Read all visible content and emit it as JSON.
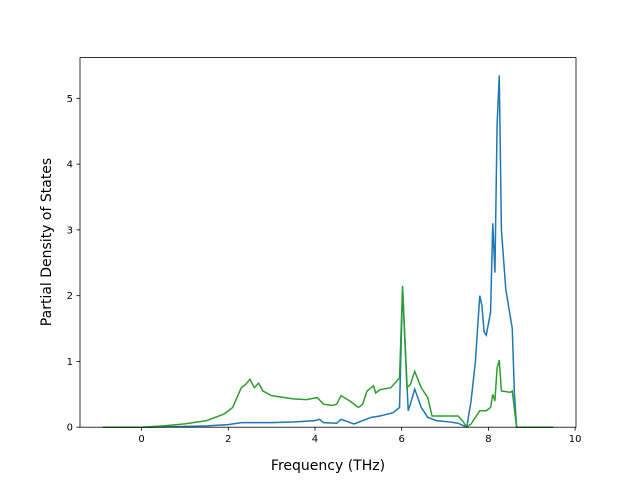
{
  "chart_data": {
    "type": "line",
    "xlabel": "Frequency (THz)",
    "ylabel": "Partial Density of States",
    "xlim": [
      -1.42,
      10.02
    ],
    "ylim": [
      0,
      5.62
    ],
    "xticks": [
      0,
      2,
      4,
      6,
      8,
      10
    ],
    "yticks": [
      0,
      1,
      2,
      3,
      4,
      5
    ],
    "series": [
      {
        "color": "#1f77b4",
        "x": [
          -0.9,
          0,
          1,
          1.5,
          2,
          2.3,
          3,
          3.5,
          4,
          4.1,
          4.2,
          4.5,
          4.6,
          4.9,
          5.1,
          5.3,
          5.5,
          5.8,
          5.95,
          6.02,
          6.15,
          6.2,
          6.3,
          6.45,
          6.6,
          6.8,
          7.1,
          7.3,
          7.5,
          7.6,
          7.7,
          7.8,
          7.85,
          7.9,
          7.95,
          8.05,
          8.1,
          8.15,
          8.2,
          8.25,
          8.3,
          8.4,
          8.55,
          8.6,
          8.65,
          9.5
        ],
        "values": [
          0,
          0,
          0.01,
          0.02,
          0.04,
          0.07,
          0.07,
          0.08,
          0.1,
          0.12,
          0.07,
          0.06,
          0.12,
          0.05,
          0.1,
          0.15,
          0.17,
          0.22,
          0.3,
          2.1,
          0.25,
          0.35,
          0.58,
          0.3,
          0.15,
          0.1,
          0.08,
          0.06,
          0,
          0.4,
          1.0,
          2.0,
          1.85,
          1.45,
          1.4,
          1.75,
          3.1,
          2.35,
          4.6,
          5.35,
          3.0,
          2.1,
          1.5,
          0.5,
          0,
          0
        ]
      },
      {
        "color": "#2ca02c",
        "x": [
          -0.9,
          0,
          0.5,
          1,
          1.5,
          1.9,
          2.1,
          2.3,
          2.4,
          2.5,
          2.6,
          2.7,
          2.8,
          3.0,
          3.5,
          3.8,
          4.05,
          4.2,
          4.4,
          4.5,
          4.6,
          4.8,
          5.0,
          5.1,
          5.2,
          5.35,
          5.4,
          5.5,
          5.75,
          5.95,
          6.02,
          6.12,
          6.2,
          6.3,
          6.45,
          6.6,
          6.7,
          7.3,
          7.4,
          7.5,
          7.6,
          7.7,
          7.8,
          7.95,
          8.05,
          8.1,
          8.15,
          8.2,
          8.25,
          8.3,
          8.5,
          8.55,
          8.65,
          9.5
        ],
        "values": [
          0,
          0,
          0.02,
          0.05,
          0.1,
          0.2,
          0.3,
          0.6,
          0.65,
          0.73,
          0.6,
          0.67,
          0.55,
          0.48,
          0.43,
          0.42,
          0.45,
          0.35,
          0.33,
          0.35,
          0.48,
          0.4,
          0.3,
          0.35,
          0.55,
          0.63,
          0.52,
          0.57,
          0.6,
          0.75,
          2.15,
          0.6,
          0.65,
          0.85,
          0.6,
          0.45,
          0.17,
          0.17,
          0.1,
          0,
          0.05,
          0.15,
          0.25,
          0.25,
          0.3,
          0.5,
          0.4,
          0.9,
          1.02,
          0.55,
          0.53,
          0.55,
          0,
          0
        ]
      }
    ]
  }
}
